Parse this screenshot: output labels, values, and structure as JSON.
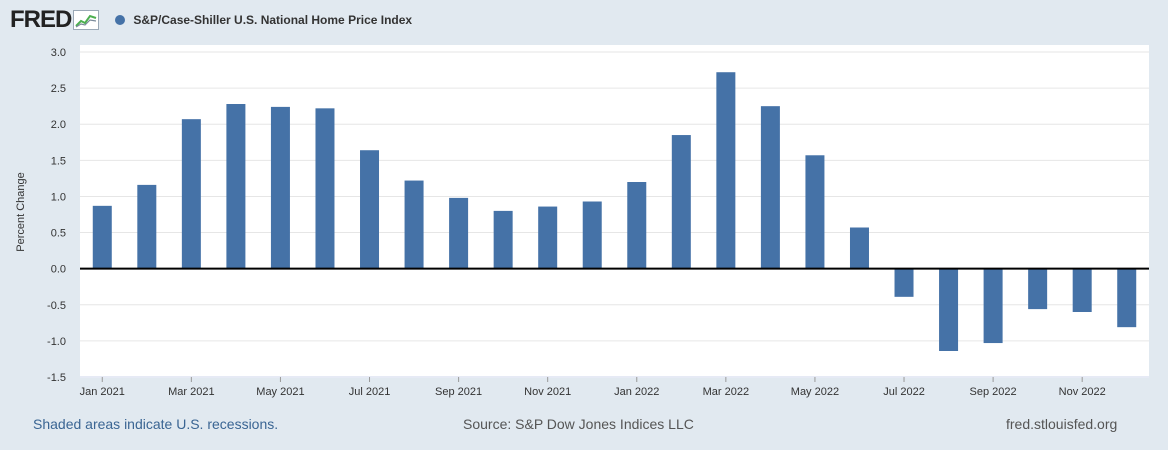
{
  "header": {
    "logo": "FRED",
    "series_color": "#4572a7"
  },
  "chart_data": {
    "type": "bar",
    "title": "S&P/Case-Shiller U.S. National Home Price Index",
    "ylabel": "Percent Change",
    "xlabel": "",
    "ylim": [
      -1.5,
      3.0
    ],
    "yticks": [
      "3.0",
      "2.5",
      "2.0",
      "1.5",
      "1.0",
      "0.5",
      "0.0",
      "-0.5",
      "-1.0",
      "-1.5"
    ],
    "categories": [
      "Jan 2021",
      "Feb 2021",
      "Mar 2021",
      "Apr 2021",
      "May 2021",
      "Jun 2021",
      "Jul 2021",
      "Aug 2021",
      "Sep 2021",
      "Oct 2021",
      "Nov 2021",
      "Dec 2021",
      "Jan 2022",
      "Feb 2022",
      "Mar 2022",
      "Apr 2022",
      "May 2022",
      "Jun 2022",
      "Jul 2022",
      "Aug 2022",
      "Sep 2022",
      "Oct 2022",
      "Nov 2022",
      "Dec 2022"
    ],
    "xtick_labels": [
      "Jan 2021",
      "Mar 2021",
      "May 2021",
      "Jul 2021",
      "Sep 2021",
      "Nov 2021",
      "Jan 2022",
      "Mar 2022",
      "May 2022",
      "Jul 2022",
      "Sep 2022",
      "Nov 2022"
    ],
    "values": [
      0.87,
      1.16,
      2.07,
      2.28,
      2.24,
      2.22,
      1.64,
      1.22,
      0.98,
      0.8,
      0.86,
      0.93,
      1.2,
      1.85,
      2.72,
      2.25,
      1.57,
      0.57,
      -0.39,
      -1.14,
      -1.03,
      -0.56,
      -0.6,
      -0.81
    ],
    "grid": true,
    "legend": "top-left"
  },
  "footer": {
    "recessions": "Shaded areas indicate U.S. recessions.",
    "source": "Source: S&P Dow Jones Indices LLC",
    "site": "fred.stlouisfed.org"
  }
}
